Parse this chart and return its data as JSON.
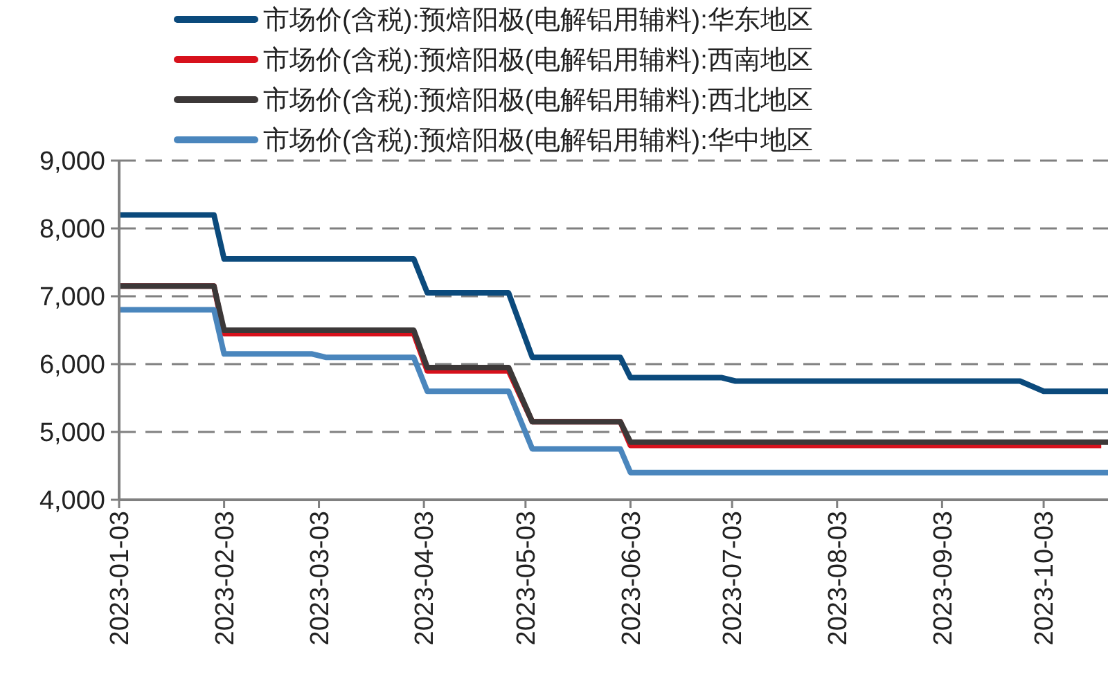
{
  "chart_data": {
    "type": "line",
    "grid": "y",
    "legend": "top",
    "marker": "none",
    "line_style": "solid",
    "xlim": [
      "2023-01-03",
      "2023-10-22"
    ],
    "xticks": [
      "2023-01-03",
      "2023-02-03",
      "2023-03-03",
      "2023-04-03",
      "2023-05-03",
      "2023-06-03",
      "2023-07-03",
      "2023-08-03",
      "2023-09-03",
      "2023-10-03"
    ],
    "ylim": [
      4000,
      9000
    ],
    "yticks": [
      {
        "value": 4000,
        "label": "4,000"
      },
      {
        "value": 5000,
        "label": "5,000"
      },
      {
        "value": 6000,
        "label": "6,000"
      },
      {
        "value": 7000,
        "label": "7,000"
      },
      {
        "value": 8000,
        "label": "8,000"
      },
      {
        "value": 9000,
        "label": "9,000"
      }
    ],
    "series": [
      {
        "name": "市场价(含税):预焙阳极(电解铝用辅料):华东地区",
        "color": "#0b4a7c",
        "x": [
          "2023-01-03",
          "2023-01-31",
          "2023-02-03",
          "2023-03-31",
          "2023-04-04",
          "2023-04-28",
          "2023-05-05",
          "2023-05-31",
          "2023-06-03",
          "2023-06-30",
          "2023-07-04",
          "2023-09-26",
          "2023-10-03",
          "2023-10-22"
        ],
        "values": [
          8200,
          8200,
          7550,
          7550,
          7050,
          7050,
          6100,
          6100,
          5800,
          5800,
          5750,
          5750,
          5600,
          5600
        ]
      },
      {
        "name": "市场价(含税):预焙阳极(电解铝用辅料):西南地区",
        "color": "#d7111c",
        "x": [
          "2023-01-03",
          "2023-01-31",
          "2023-02-03",
          "2023-03-31",
          "2023-04-04",
          "2023-04-28",
          "2023-05-05",
          "2023-05-31",
          "2023-06-03",
          "2023-10-20"
        ],
        "values": [
          7150,
          7150,
          6450,
          6450,
          5900,
          5900,
          5150,
          5150,
          4800,
          4800
        ]
      },
      {
        "name": "市场价(含税):预焙阳极(电解铝用辅料):西北地区",
        "color": "#3c3838",
        "x": [
          "2023-01-03",
          "2023-01-31",
          "2023-02-03",
          "2023-03-31",
          "2023-04-04",
          "2023-04-28",
          "2023-05-05",
          "2023-05-31",
          "2023-06-03",
          "2023-10-22"
        ],
        "values": [
          7150,
          7150,
          6500,
          6500,
          5950,
          5950,
          5150,
          5150,
          4850,
          4850
        ]
      },
      {
        "name": "市场价(含税):预焙阳极(电解铝用辅料):华中地区",
        "color": "#4a86bd",
        "x": [
          "2023-01-03",
          "2023-01-31",
          "2023-02-03",
          "2023-03-01",
          "2023-03-05",
          "2023-03-31",
          "2023-04-04",
          "2023-04-28",
          "2023-05-05",
          "2023-05-31",
          "2023-06-03",
          "2023-10-22"
        ],
        "values": [
          6800,
          6800,
          6150,
          6150,
          6100,
          6100,
          5600,
          5600,
          4750,
          4750,
          4400,
          4400
        ]
      }
    ]
  }
}
